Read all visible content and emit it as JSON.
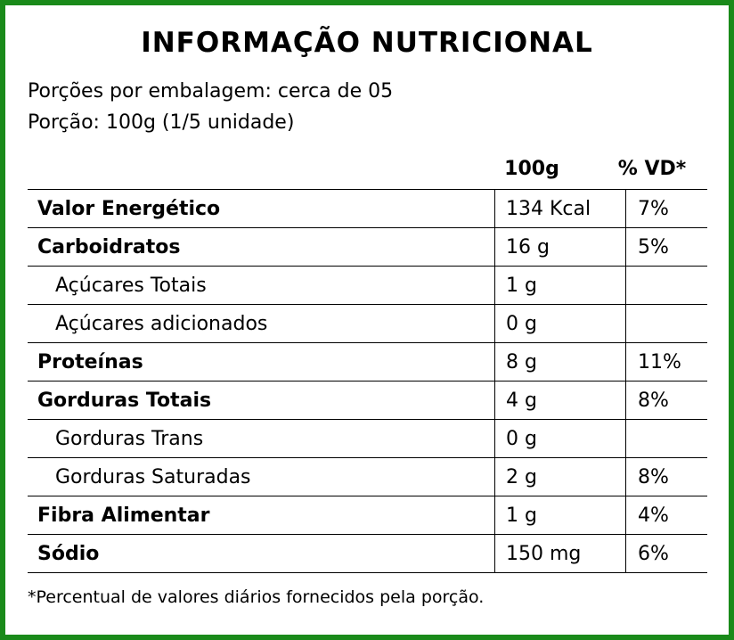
{
  "title": "INFORMAÇÃO NUTRICIONAL",
  "servings_per_package": "Porções por embalagem: cerca de 05",
  "serving_size": "Porção: 100g (1/5 unidade)",
  "columns": {
    "amount": "100g",
    "dv": "% VD*"
  },
  "rows": [
    {
      "name": "Valor Energético",
      "amount": "134 Kcal",
      "dv": "7%",
      "level": "main"
    },
    {
      "name": "Carboidratos",
      "amount": "16 g",
      "dv": "5%",
      "level": "main"
    },
    {
      "name": "Açúcares Totais",
      "amount": "1 g",
      "dv": "",
      "level": "sub"
    },
    {
      "name": "Açúcares adicionados",
      "amount": "0 g",
      "dv": "",
      "level": "sub"
    },
    {
      "name": "Proteínas",
      "amount": "8 g",
      "dv": "11%",
      "level": "main"
    },
    {
      "name": "Gorduras Totais",
      "amount": "4 g",
      "dv": "8%",
      "level": "main"
    },
    {
      "name": "Gorduras Trans",
      "amount": "0 g",
      "dv": "",
      "level": "sub"
    },
    {
      "name": "Gorduras Saturadas",
      "amount": "2 g",
      "dv": "8%",
      "level": "sub"
    },
    {
      "name": "Fibra Alimentar",
      "amount": "1 g",
      "dv": "4%",
      "level": "main"
    },
    {
      "name": "Sódio",
      "amount": "150 mg",
      "dv": "6%",
      "level": "main"
    }
  ],
  "footnote": "*Percentual de valores diários fornecidos pela porção.",
  "colors": {
    "border": "#1a8a1a"
  }
}
